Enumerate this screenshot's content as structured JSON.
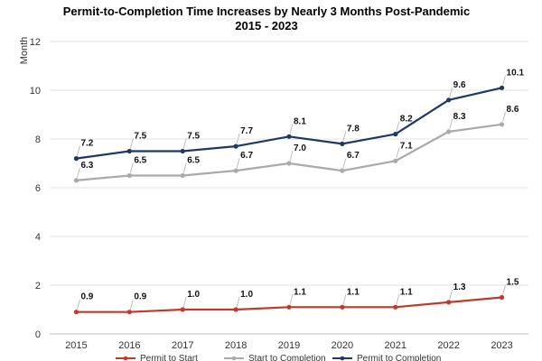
{
  "chart_data": {
    "type": "line",
    "title": "Permit-to-Completion  Time Increases by Nearly 3 Months Post-Pandemic",
    "subtitle": "2015 - 2023",
    "ylabel": "Month",
    "xlabel": "",
    "ylim": [
      0,
      12
    ],
    "yticks": [
      "0",
      "2",
      "4",
      "6",
      "8",
      "10",
      "12"
    ],
    "categories": [
      "2015",
      "2016",
      "2017",
      "2018",
      "2019",
      "2020",
      "2021",
      "2022",
      "2023"
    ],
    "grid": true,
    "legend_position": "bottom",
    "series": [
      {
        "name": "Permit to Start",
        "color": "#c0392b",
        "values": [
          0.9,
          0.9,
          1.0,
          1.0,
          1.1,
          1.1,
          1.1,
          1.3,
          1.5
        ],
        "labels": [
          "0.9",
          "0.9",
          "1.0",
          "1.0",
          "1.1",
          "1.1",
          "1.1",
          "1.3",
          "1.5"
        ]
      },
      {
        "name": "Start to Completion",
        "color": "#aaaaaa",
        "values": [
          6.3,
          6.5,
          6.5,
          6.7,
          7.0,
          6.7,
          7.1,
          8.3,
          8.6
        ],
        "labels": [
          "6.3",
          "6.5",
          "6.5",
          "6.7",
          "7.0",
          "6.7",
          "7.1",
          "8.3",
          "8.6"
        ]
      },
      {
        "name": "Permit to Completion",
        "color": "#1f3864",
        "values": [
          7.2,
          7.5,
          7.5,
          7.7,
          8.1,
          7.8,
          8.2,
          9.6,
          10.1
        ],
        "labels": [
          "7.2",
          "7.5",
          "7.5",
          "7.7",
          "8.1",
          "7.8",
          "8.2",
          "9.6",
          "10.1"
        ]
      }
    ]
  }
}
